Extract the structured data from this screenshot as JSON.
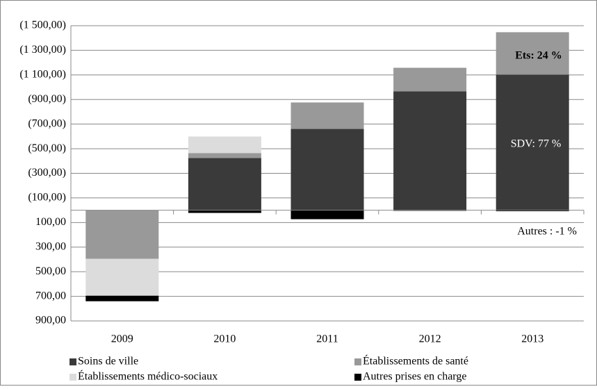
{
  "chart_data": {
    "type": "bar",
    "stacked": true,
    "invert_y": true,
    "categories": [
      "2009",
      "2010",
      "2011",
      "2012",
      "2013"
    ],
    "series": [
      {
        "name": "Soins de ville",
        "color": "#3a3a3a",
        "values": [
          0,
          -424,
          -661,
          -966,
          -1102
        ]
      },
      {
        "name": "Établissements de santé",
        "color": "#999999",
        "values": [
          395,
          -40,
          -215,
          -192,
          -345
        ]
      },
      {
        "name": "Établissements médico-sociaux",
        "color": "#dcdcdc",
        "values": [
          300,
          -135,
          0,
          0,
          0
        ]
      },
      {
        "name": "Autres prises en charge",
        "color": "#000000",
        "values": [
          45,
          22,
          73,
          5,
          8
        ]
      }
    ],
    "ylim": [
      -1500,
      900
    ],
    "yticks": [
      {
        "value": -1500,
        "label": "(1 500,00)"
      },
      {
        "value": -1300,
        "label": "(1 300,00)"
      },
      {
        "value": -1100,
        "label": "(1 100,00)"
      },
      {
        "value": -900,
        "label": "(900,00)"
      },
      {
        "value": -700,
        "label": "(700,00)"
      },
      {
        "value": -500,
        "label": "(500,00)"
      },
      {
        "value": -300,
        "label": "(300,00)"
      },
      {
        "value": -100,
        "label": "(100,00)"
      },
      {
        "value": 100,
        "label": "100,00"
      },
      {
        "value": 300,
        "label": "300,00"
      },
      {
        "value": 500,
        "label": "500,00"
      },
      {
        "value": 700,
        "label": "700,00"
      },
      {
        "value": 900,
        "label": "900,00"
      }
    ],
    "grid": true,
    "annotations": [
      "Ets: 24 %",
      "SDV: 77 %",
      "Autres : -1 %"
    ]
  }
}
